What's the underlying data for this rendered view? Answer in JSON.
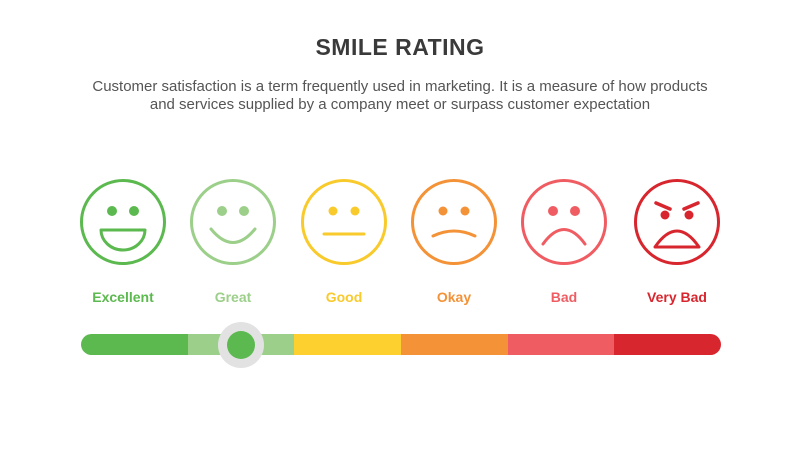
{
  "header": {
    "title": "SMILE RATING",
    "description_line1": "Customer satisfaction is a term frequently used in marketing. It is a measure of how products",
    "description_line2": "and services supplied by a company meet or surpass customer expectation"
  },
  "ratings": [
    {
      "label": "Excellent",
      "color": "#5cb94f",
      "icon": "laughing-face-icon"
    },
    {
      "label": "Great",
      "color": "#9ccf8a",
      "icon": "smiling-face-icon"
    },
    {
      "label": "Good",
      "color": "#f8ca2b",
      "icon": "neutral-face-icon"
    },
    {
      "label": "Okay",
      "color": "#f39237",
      "icon": "slightly-sad-face-icon"
    },
    {
      "label": "Bad",
      "color": "#ef5d63",
      "icon": "sad-face-icon"
    },
    {
      "label": "Very Bad",
      "color": "#d8262e",
      "icon": "angry-face-icon"
    }
  ],
  "slider": {
    "selected_index": 1,
    "knob_color": "#5cb94f",
    "track_colors": [
      "#5cb94f",
      "#9ccf8a",
      "#fdd02f",
      "#f39237",
      "#ef5d63",
      "#d8262e"
    ]
  }
}
